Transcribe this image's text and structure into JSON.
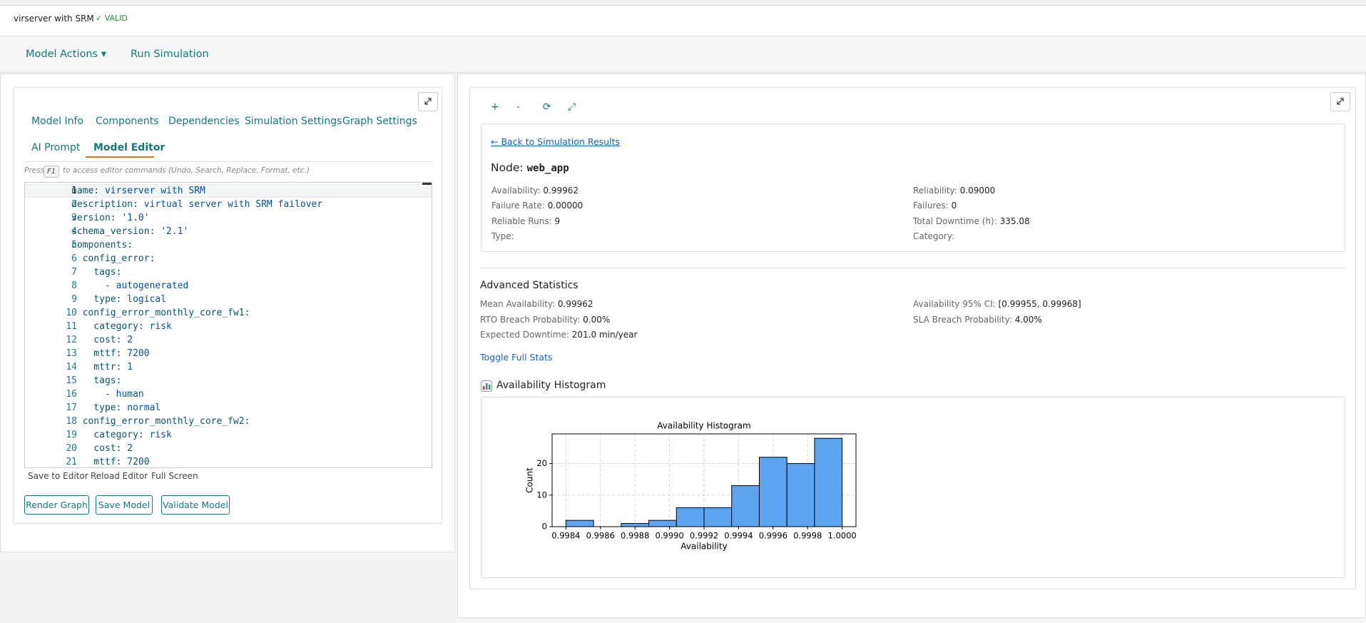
{
  "header": {
    "title": "virserver with SRM",
    "status": "✓ VALID"
  },
  "toolbar": {
    "model_actions": "Model Actions ▾",
    "run_simulation": "Run Simulation"
  },
  "editor_panel": {
    "tabs": [
      "Model Info",
      "Components",
      "Dependencies",
      "Simulation Settings",
      "Graph Settings",
      "AI Prompt",
      "Model Editor"
    ],
    "hint": {
      "prefix": "Press",
      "key": "F1",
      "text": "to access editor commands (Undo, Search, Replace, Format, etc.)"
    },
    "code": [
      {
        "num": 1,
        "key": "name:",
        "value": " virserver with SRM"
      },
      {
        "num": 2,
        "key": "description:",
        "value": " virtual server with SRM failover"
      },
      {
        "num": 3,
        "key": "version:",
        "value": " '1.0'"
      },
      {
        "num": 4,
        "key": "schema_version:",
        "value": " '2.1'"
      },
      {
        "num": 5,
        "key": "components:"
      },
      {
        "num": 6,
        "key": "  config_error:"
      },
      {
        "num": 7,
        "key": "    tags:"
      },
      {
        "num": 8,
        "value": "      - autogenerated"
      },
      {
        "num": 9,
        "key": "    type:",
        "value": " logical"
      },
      {
        "num": 10,
        "key": "  config_error_monthly_core_fw1:"
      },
      {
        "num": 11,
        "key": "    category:",
        "value": " risk"
      },
      {
        "num": 12,
        "key": "    cost:",
        "value": " 2"
      },
      {
        "num": 13,
        "key": "    mttf:",
        "value": " 7200"
      },
      {
        "num": 14,
        "key": "    mttr:",
        "value": " 1"
      },
      {
        "num": 15,
        "key": "    tags:"
      },
      {
        "num": 16,
        "value": "      - human"
      },
      {
        "num": 17,
        "key": "    type:",
        "value": " normal"
      },
      {
        "num": 18,
        "key": "  config_error_monthly_core_fw2:"
      },
      {
        "num": 19,
        "key": "    category:",
        "value": " risk"
      },
      {
        "num": 20,
        "key": "    cost:",
        "value": " 2"
      },
      {
        "num": 21,
        "key": "    mttf:",
        "value": " 7200"
      }
    ],
    "editor_links": [
      "Save to Editor",
      "Reload Editor",
      "Full Screen"
    ],
    "buttons": [
      "Render Graph",
      "Save Model",
      "Validate Model"
    ]
  },
  "results_panel": {
    "controls": [
      "+",
      "-",
      "⟳",
      "⤢"
    ],
    "back_link": "← Back to Simulation Results",
    "node_label": "Node:",
    "node_name": "web_app",
    "node_rows": [
      {
        "left": {
          "label": "Availability:",
          "value": "0.99962"
        },
        "right": {
          "label": "Reliability:",
          "value": "0.09000"
        }
      },
      {
        "left": {
          "label": "Failure Rate:",
          "value": "0.00000"
        },
        "right": {
          "label": "Failures:",
          "value": "0"
        }
      },
      {
        "left": {
          "label": "Reliable Runs:",
          "value": "9"
        },
        "right": {
          "label": "Total Downtime (h):",
          "value": "335.08"
        }
      },
      {
        "left": {
          "label": "Type:"
        },
        "right": {
          "label": "Category:"
        }
      }
    ],
    "advanced_title": "Advanced Statistics",
    "advanced_rows": [
      {
        "left": {
          "label": "Mean Availability:",
          "value": "0.99962"
        },
        "right": {
          "label": "Availability 95% CI:",
          "value": "[0.99955, 0.99968]"
        }
      },
      {
        "left": {
          "label": "RTO Breach Probability:",
          "value": "0.00%"
        },
        "right": {
          "label": "SLA Breach Probability:",
          "value": "4.00%"
        }
      },
      {
        "left": {
          "label": "Expected Downtime:",
          "value": "201.0 min/year"
        }
      }
    ],
    "toggle_link": "Toggle Full Stats",
    "histogram_heading": "Availability Histogram"
  },
  "histogram": {
    "type": "histogram",
    "title": "Availability Histogram",
    "x_label": "Availability",
    "y_label": "Count",
    "bins": [
      0.9984,
      0.99856,
      0.99872,
      0.99888,
      0.99904,
      0.9992,
      0.99936,
      0.99952,
      0.99968,
      0.99984,
      1.0
    ],
    "counts": [
      2,
      0,
      1,
      2,
      6,
      6,
      13,
      22,
      20,
      28
    ],
    "color": "#5da5f0",
    "edge_color": "#000000",
    "xlim": [
      0.99832,
      1.00008
    ],
    "ylim": [
      0,
      29.4
    ],
    "xticks": [
      0.9984,
      0.9986,
      0.9988,
      {
        "value": 0.999,
        "label": "0.9990"
      },
      0.9992,
      0.9994,
      0.9996,
      0.9998,
      {
        "value": 1,
        "label": "1.0000"
      }
    ],
    "yticks": [
      0,
      10,
      20
    ],
    "grid": true
  }
}
